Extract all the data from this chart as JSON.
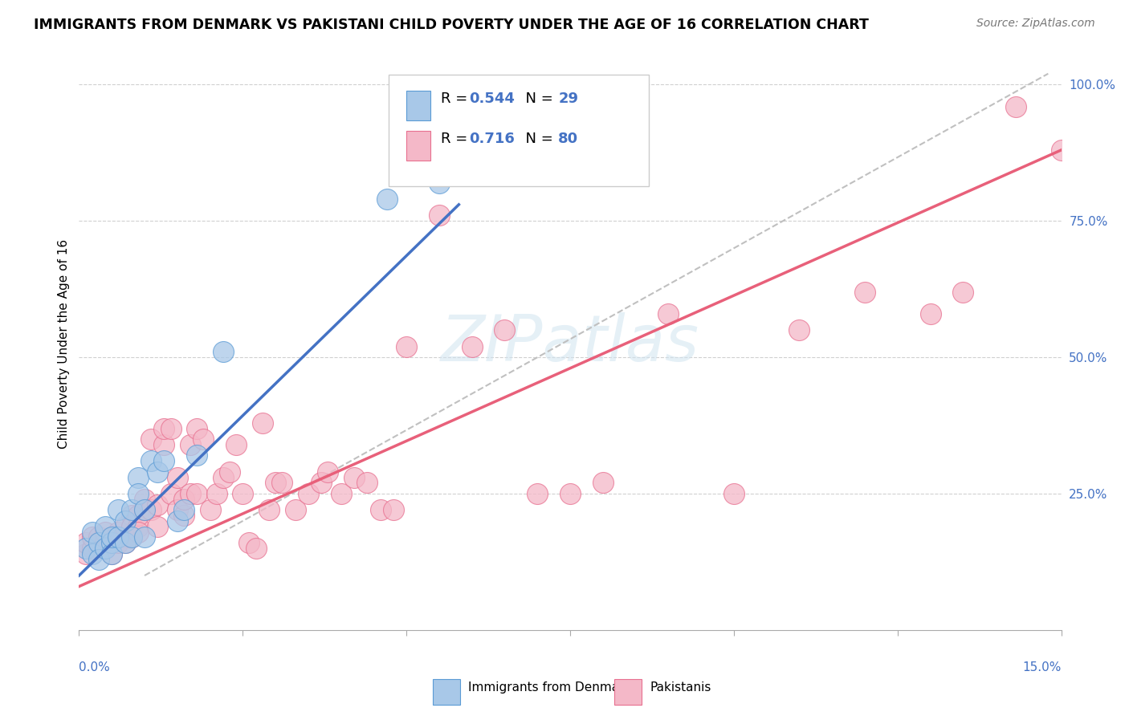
{
  "title": "IMMIGRANTS FROM DENMARK VS PAKISTANI CHILD POVERTY UNDER THE AGE OF 16 CORRELATION CHART",
  "source": "Source: ZipAtlas.com",
  "ylabel": "Child Poverty Under the Age of 16",
  "legend_R1": "0.544",
  "legend_N1": "29",
  "legend_R2": "0.716",
  "legend_N2": "80",
  "legend_label1": "Immigrants from Denmark",
  "legend_label2": "Pakistanis",
  "color_blue": "#a8c8e8",
  "color_blue_edge": "#5b9bd5",
  "color_blue_line": "#4472c4",
  "color_pink": "#f4b8c8",
  "color_pink_edge": "#e87090",
  "color_pink_line": "#e8607a",
  "xmin": 0.0,
  "xmax": 0.15,
  "ymin": 0.0,
  "ymax": 1.05,
  "blue_scatter_x": [
    0.001,
    0.002,
    0.002,
    0.003,
    0.003,
    0.004,
    0.004,
    0.005,
    0.005,
    0.005,
    0.006,
    0.006,
    0.007,
    0.007,
    0.008,
    0.008,
    0.009,
    0.009,
    0.01,
    0.01,
    0.011,
    0.012,
    0.013,
    0.015,
    0.016,
    0.018,
    0.022,
    0.047,
    0.055
  ],
  "blue_scatter_y": [
    0.15,
    0.18,
    0.14,
    0.16,
    0.13,
    0.19,
    0.15,
    0.16,
    0.14,
    0.17,
    0.22,
    0.17,
    0.2,
    0.16,
    0.22,
    0.17,
    0.28,
    0.25,
    0.22,
    0.17,
    0.31,
    0.29,
    0.31,
    0.2,
    0.22,
    0.32,
    0.51,
    0.79,
    0.82
  ],
  "pink_scatter_x": [
    0.001,
    0.001,
    0.002,
    0.002,
    0.003,
    0.003,
    0.003,
    0.004,
    0.004,
    0.004,
    0.005,
    0.005,
    0.005,
    0.006,
    0.006,
    0.006,
    0.007,
    0.007,
    0.007,
    0.008,
    0.008,
    0.008,
    0.009,
    0.009,
    0.009,
    0.01,
    0.01,
    0.011,
    0.011,
    0.012,
    0.012,
    0.013,
    0.013,
    0.014,
    0.014,
    0.015,
    0.015,
    0.016,
    0.016,
    0.017,
    0.017,
    0.018,
    0.018,
    0.019,
    0.02,
    0.021,
    0.022,
    0.023,
    0.024,
    0.025,
    0.026,
    0.027,
    0.028,
    0.029,
    0.03,
    0.031,
    0.033,
    0.035,
    0.037,
    0.038,
    0.04,
    0.042,
    0.044,
    0.046,
    0.048,
    0.05,
    0.055,
    0.06,
    0.065,
    0.07,
    0.075,
    0.08,
    0.09,
    0.1,
    0.11,
    0.12,
    0.13,
    0.135,
    0.143,
    0.15
  ],
  "pink_scatter_y": [
    0.14,
    0.16,
    0.15,
    0.17,
    0.15,
    0.17,
    0.16,
    0.16,
    0.18,
    0.15,
    0.16,
    0.17,
    0.14,
    0.18,
    0.17,
    0.16,
    0.17,
    0.19,
    0.16,
    0.17,
    0.21,
    0.19,
    0.19,
    0.21,
    0.18,
    0.22,
    0.24,
    0.22,
    0.35,
    0.19,
    0.23,
    0.34,
    0.37,
    0.37,
    0.25,
    0.28,
    0.22,
    0.21,
    0.24,
    0.34,
    0.25,
    0.37,
    0.25,
    0.35,
    0.22,
    0.25,
    0.28,
    0.29,
    0.34,
    0.25,
    0.16,
    0.15,
    0.38,
    0.22,
    0.27,
    0.27,
    0.22,
    0.25,
    0.27,
    0.29,
    0.25,
    0.28,
    0.27,
    0.22,
    0.22,
    0.52,
    0.76,
    0.52,
    0.55,
    0.25,
    0.25,
    0.27,
    0.58,
    0.25,
    0.55,
    0.62,
    0.58,
    0.62,
    0.96,
    0.88
  ],
  "blue_line_x0": 0.0,
  "blue_line_x1": 0.058,
  "blue_line_y0": 0.1,
  "blue_line_y1": 0.78,
  "pink_line_x0": 0.0,
  "pink_line_x1": 0.15,
  "pink_line_y0": 0.08,
  "pink_line_y1": 0.88,
  "dash_line_x0": 0.01,
  "dash_line_x1": 0.148,
  "dash_line_y0": 0.1,
  "dash_line_y1": 1.02
}
